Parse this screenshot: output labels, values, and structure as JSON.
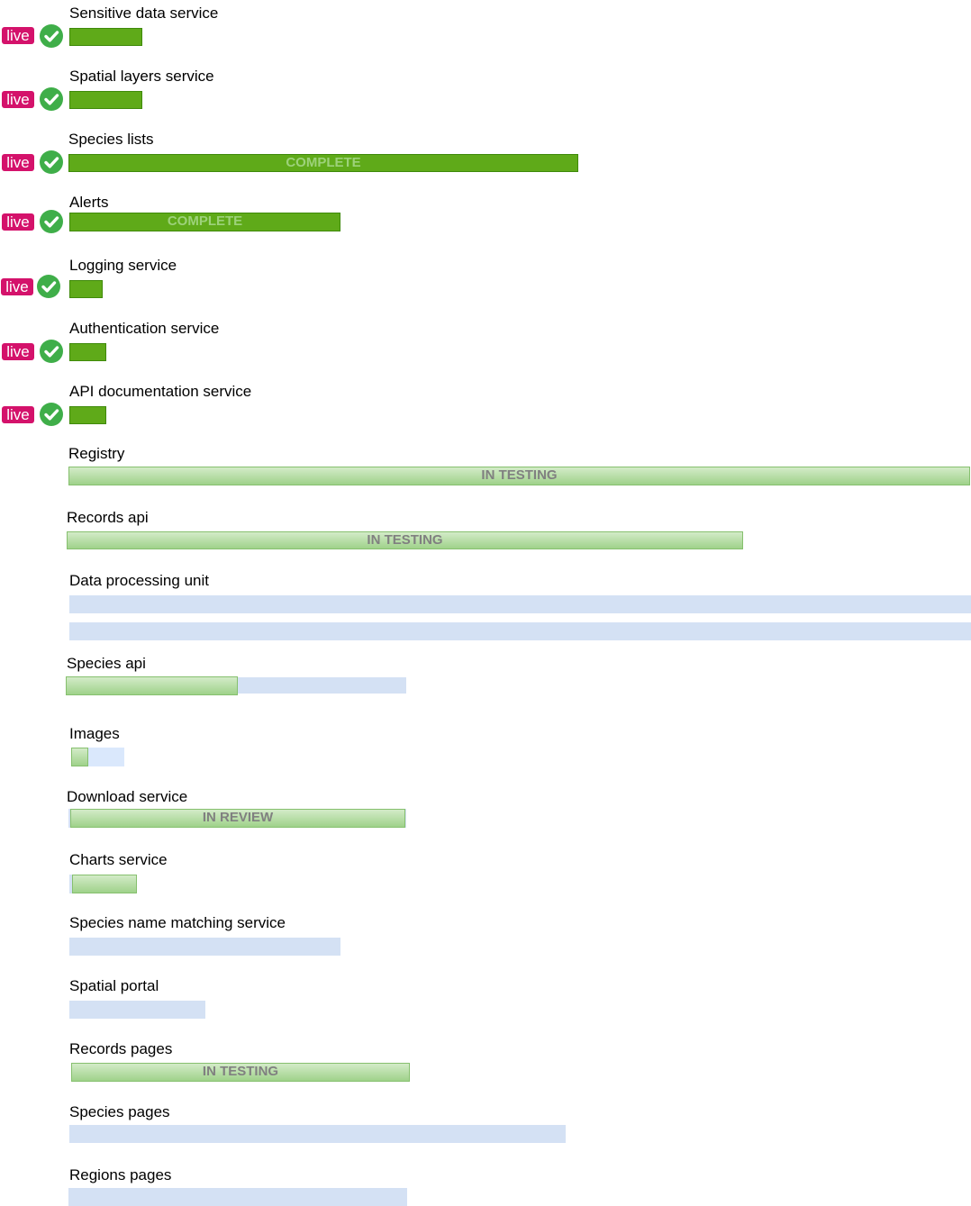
{
  "colors": {
    "live_badge": "#d4126b",
    "check": "#3fae49",
    "complete_bar": "#5faa19",
    "progress_bar": "#a8d694",
    "track": "#d4e1f4"
  },
  "items": [
    {
      "label": "Sensitive data service",
      "badge": "live",
      "icon": "check-circle-icon",
      "status": "",
      "progress": 1
    },
    {
      "label": "Spatial layers service",
      "badge": "live",
      "icon": "check-circle-icon",
      "status": "",
      "progress": 1
    },
    {
      "label": "Species lists",
      "badge": "live",
      "icon": "check-circle-icon",
      "status": "COMPLETE",
      "progress": 1
    },
    {
      "label": "Alerts",
      "badge": "live",
      "icon": "check-circle-icon",
      "status": "COMPLETE",
      "progress": 1
    },
    {
      "label": "Logging service",
      "badge": "live",
      "icon": "check-circle-icon",
      "status": "",
      "progress": 1
    },
    {
      "label": "Authentication service",
      "badge": "live",
      "icon": "check-circle-icon",
      "status": "",
      "progress": 1
    },
    {
      "label": "API documentation service",
      "badge": "live",
      "icon": "check-circle-icon",
      "status": "",
      "progress": 1
    },
    {
      "label": "Registry",
      "status": "IN TESTING",
      "progress": 1
    },
    {
      "label": "Records api",
      "status": "IN TESTING",
      "progress": 1
    },
    {
      "label": "Data processing unit",
      "status": "",
      "progress": 0
    },
    {
      "label": "Species api",
      "status": "",
      "progress": 0.5
    },
    {
      "label": "Images",
      "status": "",
      "progress": 0.3
    },
    {
      "label": "Download service",
      "status": "IN REVIEW",
      "progress": 1
    },
    {
      "label": "Charts service",
      "status": "",
      "progress": 1
    },
    {
      "label": "Species name matching service",
      "status": "",
      "progress": 0
    },
    {
      "label": "Spatial portal",
      "status": "",
      "progress": 0
    },
    {
      "label": "Records pages",
      "status": "IN TESTING",
      "progress": 1
    },
    {
      "label": "Species pages",
      "status": "",
      "progress": 0
    },
    {
      "label": "Regions pages",
      "status": "",
      "progress": 0
    }
  ]
}
